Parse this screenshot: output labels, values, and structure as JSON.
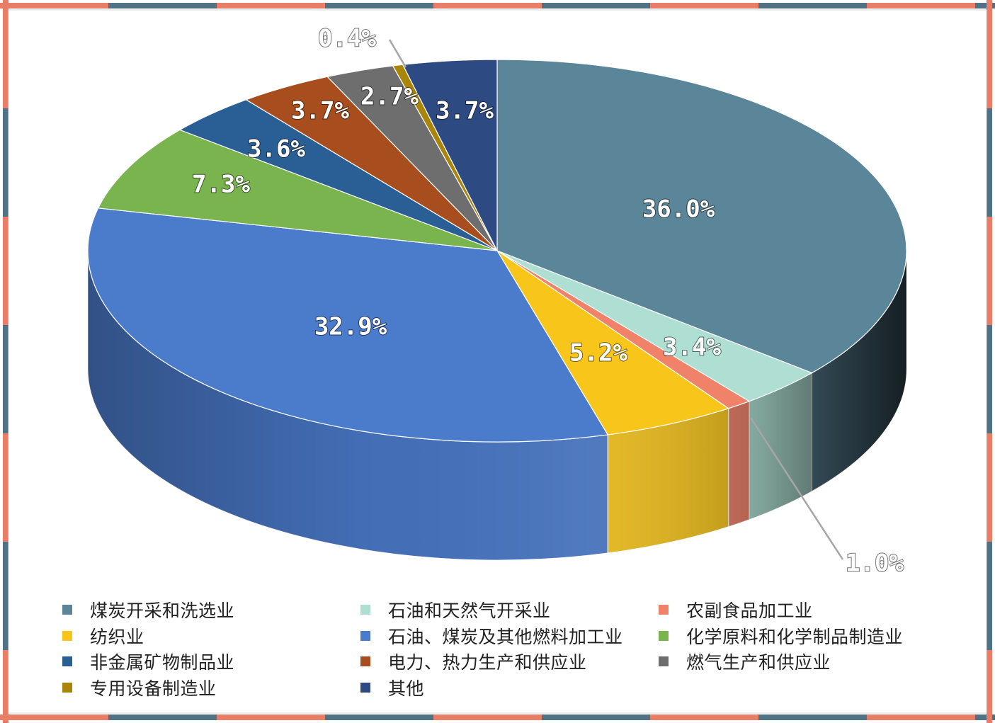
{
  "chart_data": {
    "type": "pie",
    "style": "3d",
    "legend_position": "bottom",
    "slices": [
      {
        "label": "煤炭开采和洗选业",
        "value": 36.0,
        "value_label": "36.0%",
        "color": "#5b8599"
      },
      {
        "label": "石油和天然气开采业",
        "value": 3.4,
        "value_label": "3.4%",
        "color": "#aedfd2"
      },
      {
        "label": "农副食品加工业",
        "value": 1.0,
        "value_label": "1.0%",
        "color": "#f0826a"
      },
      {
        "label": "纺织业",
        "value": 5.2,
        "value_label": "5.2%",
        "color": "#f8c61a"
      },
      {
        "label": "石油、煤炭及其他燃料加工业",
        "value": 32.9,
        "value_label": "32.9%",
        "color": "#4b7bcb"
      },
      {
        "label": "化学原料和化学制品制造业",
        "value": 7.3,
        "value_label": "7.3%",
        "color": "#7ab44e"
      },
      {
        "label": "非金属矿物制品业",
        "value": 3.6,
        "value_label": "3.6%",
        "color": "#2a5f96"
      },
      {
        "label": "电力、热力生产和供应业",
        "value": 3.7,
        "value_label": "3.7%",
        "color": "#a84e1e"
      },
      {
        "label": "燃气生产和供应业",
        "value": 2.7,
        "value_label": "2.7%",
        "color": "#6e6e6e"
      },
      {
        "label": "专用设备制造业",
        "value": 0.4,
        "value_label": "0.4%",
        "color": "#a9850a"
      },
      {
        "label": "其他",
        "value": 3.7,
        "value_label": "3.7%",
        "color": "#2d4a82"
      }
    ]
  },
  "frame_colors": {
    "coral": "#e87e68",
    "slate": "#4f7284"
  }
}
